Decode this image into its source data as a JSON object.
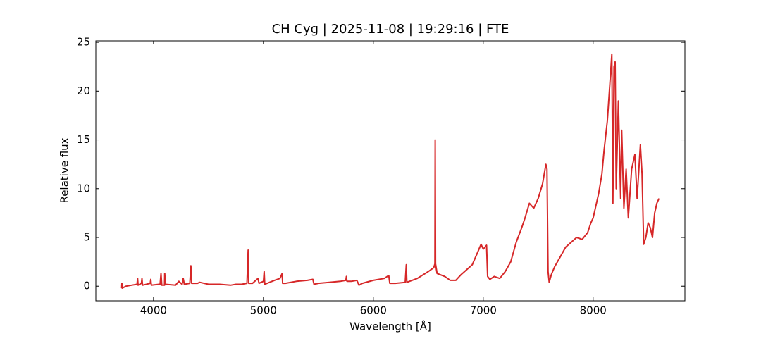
{
  "chart_data": {
    "type": "line",
    "title": "CH Cyg | 2025-11-08 | 19:29:16 | FTE",
    "xlabel": "Wavelength [Å]",
    "ylabel": "Relative flux",
    "color": "#d62728",
    "xlim": [
      3475,
      8835
    ],
    "ylim": [
      -1.5,
      25.15
    ],
    "xticks": [
      4000,
      5000,
      6000,
      7000,
      8000
    ],
    "yticks": [
      0,
      5,
      10,
      15,
      20,
      25
    ],
    "x": [
      3710,
      3712,
      3715,
      3750,
      3800,
      3850,
      3855,
      3860,
      3890,
      3895,
      3900,
      3970,
      3975,
      3980,
      4050,
      4060,
      4068,
      4075,
      4100,
      4102,
      4108,
      4200,
      4230,
      4260,
      4270,
      4280,
      4330,
      4340,
      4347,
      4400,
      4420,
      4500,
      4600,
      4700,
      4750,
      4800,
      4850,
      4861,
      4866,
      4900,
      4950,
      4960,
      5000,
      5007,
      5012,
      5100,
      5150,
      5170,
      5175,
      5200,
      5300,
      5400,
      5450,
      5460,
      5500,
      5600,
      5700,
      5750,
      5755,
      5760,
      5800,
      5850,
      5870,
      5900,
      6000,
      6100,
      6140,
      6150,
      6200,
      6290,
      6300,
      6305,
      6400,
      6500,
      6550,
      6560,
      6563,
      6566,
      6580,
      6650,
      6700,
      6750,
      6800,
      6900,
      6950,
      6980,
      7000,
      7030,
      7040,
      7060,
      7100,
      7150,
      7200,
      7250,
      7300,
      7350,
      7380,
      7420,
      7460,
      7500,
      7540,
      7570,
      7580,
      7590,
      7600,
      7620,
      7650,
      7700,
      7750,
      7800,
      7850,
      7900,
      7950,
      7980,
      8000,
      8050,
      8080,
      8100,
      8130,
      8160,
      8170,
      8180,
      8190,
      8200,
      8210,
      8230,
      8250,
      8260,
      8280,
      8300,
      8320,
      8350,
      8380,
      8400,
      8430,
      8445,
      8460,
      8480,
      8500,
      8520,
      8540,
      8560,
      8580,
      8600
    ],
    "values": [
      -0.2,
      0.3,
      -0.2,
      0.0,
      0.1,
      0.2,
      0.8,
      0.1,
      0.3,
      0.8,
      0.1,
      0.3,
      0.7,
      0.1,
      0.2,
      0.2,
      1.3,
      0.1,
      0.1,
      1.3,
      0.2,
      0.1,
      0.5,
      0.2,
      0.8,
      0.2,
      0.3,
      2.1,
      0.3,
      0.3,
      0.4,
      0.2,
      0.2,
      0.1,
      0.2,
      0.2,
      0.3,
      3.7,
      0.3,
      0.3,
      0.8,
      0.3,
      0.5,
      1.5,
      0.2,
      0.6,
      0.8,
      1.3,
      0.3,
      0.3,
      0.5,
      0.6,
      0.7,
      0.2,
      0.3,
      0.4,
      0.5,
      0.6,
      1.0,
      0.5,
      0.5,
      0.6,
      0.1,
      0.3,
      0.6,
      0.8,
      1.1,
      0.3,
      0.3,
      0.4,
      2.2,
      0.4,
      0.8,
      1.5,
      1.9,
      2.3,
      15.0,
      2.3,
      1.3,
      1.0,
      0.6,
      0.6,
      1.2,
      2.2,
      3.5,
      4.3,
      3.8,
      4.2,
      1.0,
      0.7,
      1.0,
      0.8,
      1.5,
      2.5,
      4.5,
      6.0,
      7.0,
      8.5,
      8.0,
      9.0,
      10.5,
      12.5,
      12.0,
      1.5,
      0.4,
      1.2,
      2.0,
      3.0,
      4.0,
      4.5,
      5.0,
      4.8,
      5.5,
      6.5,
      7.0,
      9.5,
      11.5,
      14.0,
      17.0,
      22.0,
      23.8,
      8.5,
      22.5,
      23.0,
      10.0,
      19.0,
      9.0,
      16.0,
      8.0,
      12.0,
      7.0,
      12.0,
      13.5,
      9.0,
      14.5,
      11.5,
      4.3,
      5.0,
      6.5,
      6.0,
      5.0,
      7.5,
      8.5,
      9.0
    ]
  }
}
